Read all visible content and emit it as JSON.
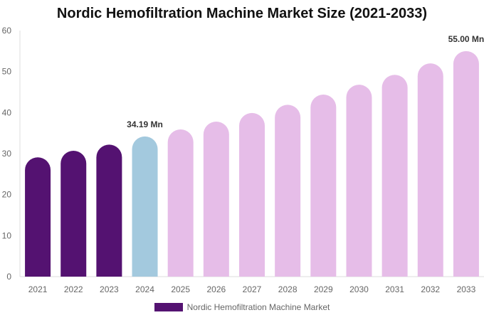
{
  "chart_data": {
    "type": "bar",
    "title": "Nordic Hemofiltration Machine Market Size (2021-2033)",
    "categories": [
      "2021",
      "2022",
      "2023",
      "2024",
      "2025",
      "2026",
      "2027",
      "2028",
      "2029",
      "2030",
      "2031",
      "2032",
      "2033"
    ],
    "series": [
      {
        "name": "Nordic Hemofiltration Machine Market",
        "values": [
          29.1,
          30.7,
          32.2,
          34.19,
          35.9,
          37.8,
          39.9,
          41.9,
          44.4,
          46.8,
          49.2,
          52.0,
          55.0
        ]
      }
    ],
    "data_labels": {
      "3": "34.19 Mn",
      "12": "55.00 Mn"
    },
    "ylim": [
      0,
      60
    ],
    "yticks": [
      0,
      10,
      20,
      30,
      40,
      50,
      60
    ],
    "xlabel": "",
    "ylabel": "",
    "grid": false,
    "legend_position": "bottom",
    "colors": {
      "historical": "#541271",
      "current": "#a3c9de",
      "forecast": "#e6bde8"
    },
    "color_by_index": [
      "historical",
      "historical",
      "historical",
      "current",
      "forecast",
      "forecast",
      "forecast",
      "forecast",
      "forecast",
      "forecast",
      "forecast",
      "forecast",
      "forecast"
    ]
  }
}
